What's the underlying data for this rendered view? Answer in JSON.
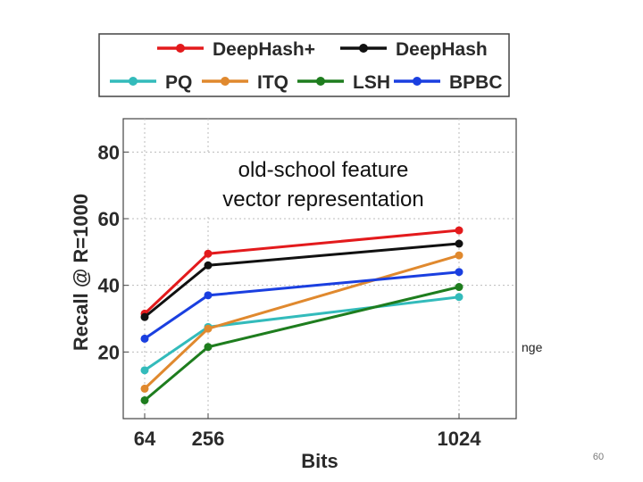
{
  "chart_data": {
    "type": "line",
    "x": [
      64,
      256,
      1024
    ],
    "xticks": [
      "64",
      "256",
      "1024"
    ],
    "xlabel": "Bits",
    "ylabel": "Recall @ R=1000",
    "ylim": [
      0,
      90
    ],
    "yticks": [
      20,
      40,
      60,
      80
    ],
    "grid": true,
    "legend": "top",
    "series": [
      {
        "name": "DeepHash+",
        "color": "#e31a1c",
        "values": [
          31.5,
          49.5,
          56.5
        ]
      },
      {
        "name": "DeepHash",
        "color": "#111111",
        "values": [
          30.5,
          46,
          52.5
        ]
      },
      {
        "name": "PQ",
        "color": "#33bbbb",
        "values": [
          14.5,
          27.5,
          36.5
        ]
      },
      {
        "name": "ITQ",
        "color": "#e0892e",
        "values": [
          9,
          27,
          49
        ]
      },
      {
        "name": "LSH",
        "color": "#1e7d1e",
        "values": [
          5.5,
          21.5,
          39.5
        ]
      },
      {
        "name": "BPBC",
        "color": "#1a3fe0",
        "values": [
          24,
          37,
          44
        ]
      }
    ]
  },
  "overlay": {
    "line1": "old-school feature",
    "line2": "vector representation"
  },
  "clipped_text": "nge",
  "page_number": "60"
}
